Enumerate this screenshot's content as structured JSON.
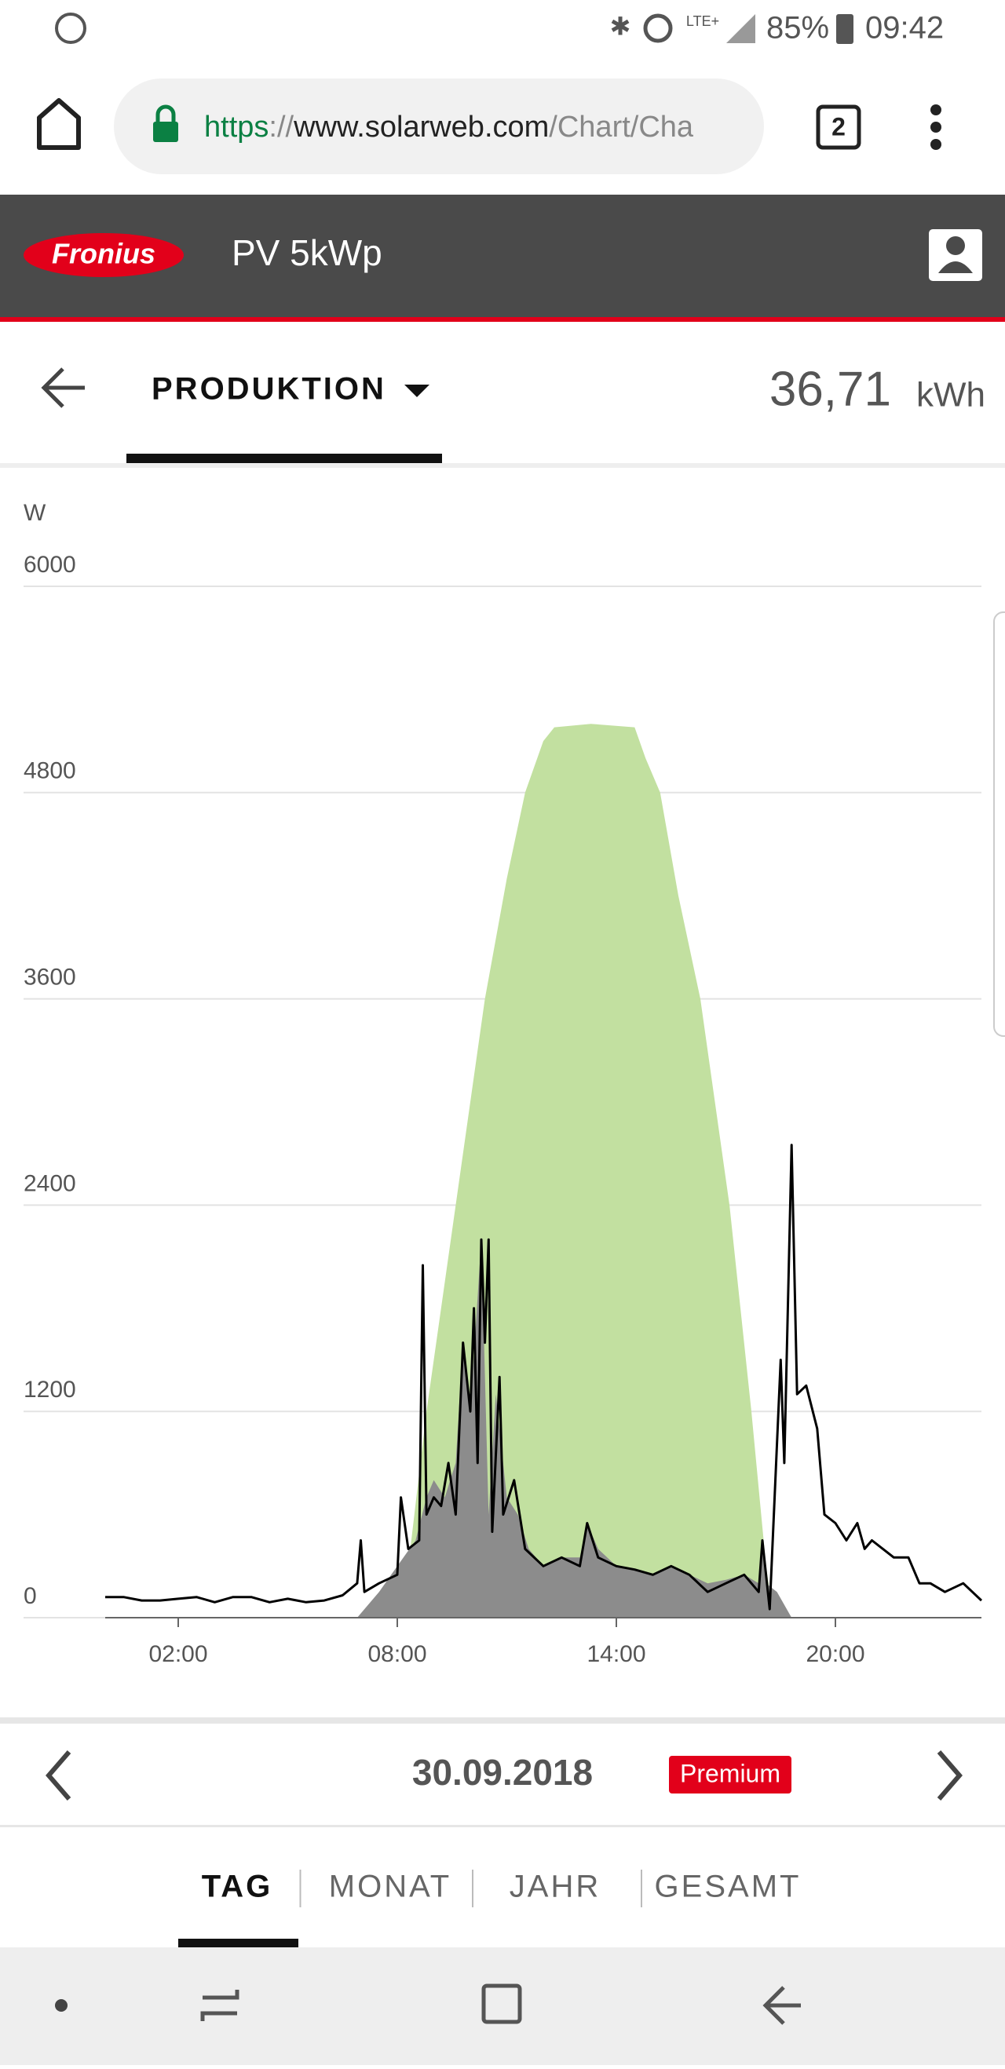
{
  "status_bar": {
    "network": "LTE+",
    "battery": "85%",
    "time": "09:42"
  },
  "browser": {
    "url_scheme": "https",
    "url_separator": "://",
    "url_host": "www.solarweb.com",
    "url_path": "/Chart/Cha",
    "tab_count": "2"
  },
  "app_header": {
    "logo": "Fronius",
    "site": "PV 5kWp"
  },
  "view_bar": {
    "view": "PRODUKTION",
    "total": "36,71",
    "unit": "kWh"
  },
  "chart_data": {
    "type": "area",
    "y_label": "W",
    "xlim": [
      0,
      24
    ],
    "xticks": [
      {
        "value": 2,
        "label": "02:00"
      },
      {
        "value": 8,
        "label": "08:00"
      },
      {
        "value": 14,
        "label": "14:00"
      },
      {
        "value": 20,
        "label": "20:00"
      }
    ],
    "ylim": [
      0,
      6000
    ],
    "yticks": [
      0,
      1200,
      2400,
      3600,
      4800,
      6000
    ],
    "grid": true,
    "series": [
      {
        "color": "#c2e0a0",
        "fill": true,
        "x": [
          7.5,
          8.3,
          8.8,
          9.6,
          10.4,
          11.0,
          11.5,
          12.0,
          12.3,
          13.3,
          14.5,
          14.8,
          15.2,
          15.7,
          16.3,
          17.1,
          17.7,
          18.1,
          18.3
        ],
        "values": [
          0,
          300,
          1200,
          2400,
          3600,
          4300,
          4800,
          5100,
          5180,
          5200,
          5180,
          5000,
          4800,
          4200,
          3600,
          2400,
          1200,
          300,
          0
        ]
      },
      {
        "color": "#8c8c8c",
        "fill": true,
        "x": [
          6.9,
          7.5,
          8.0,
          8.5,
          8.8,
          9.0,
          9.3,
          9.6,
          9.8,
          10.0,
          10.3,
          10.5,
          10.7,
          11.0,
          11.3,
          11.6,
          12.0,
          12.5,
          13.0,
          13.2,
          13.5,
          14.0,
          14.5,
          15.0,
          15.5,
          16.0,
          16.5,
          17.0,
          17.5,
          17.9,
          18.0,
          18.1,
          18.4,
          18.8
        ],
        "values": [
          0,
          150,
          300,
          450,
          700,
          800,
          700,
          900,
          1600,
          1200,
          2200,
          600,
          1300,
          700,
          600,
          400,
          300,
          350,
          350,
          550,
          400,
          300,
          280,
          250,
          300,
          250,
          200,
          220,
          250,
          200,
          450,
          200,
          150,
          0
        ]
      },
      {
        "color": "#000000",
        "fill": false,
        "x": [
          0.0,
          0.5,
          1.0,
          1.5,
          2.0,
          2.5,
          3.0,
          3.5,
          4.0,
          4.5,
          5.0,
          5.5,
          6.0,
          6.5,
          6.9,
          7.0,
          7.1,
          7.5,
          8.0,
          8.1,
          8.3,
          8.6,
          8.7,
          8.8,
          9.0,
          9.2,
          9.4,
          9.6,
          9.8,
          10.0,
          10.1,
          10.2,
          10.3,
          10.4,
          10.5,
          10.6,
          10.8,
          10.9,
          11.2,
          11.5,
          12.0,
          12.5,
          13.0,
          13.2,
          13.5,
          14.0,
          14.5,
          15.0,
          15.5,
          16.0,
          16.5,
          17.0,
          17.5,
          17.9,
          18.0,
          18.2,
          18.5,
          18.6,
          18.8,
          18.95,
          19.2,
          19.5,
          19.7,
          20.0,
          20.3,
          20.6,
          20.8,
          21.0,
          21.3,
          21.6,
          22.0,
          22.3,
          22.6,
          23.0,
          23.5,
          24.0
        ],
        "values": [
          120,
          120,
          100,
          100,
          110,
          120,
          90,
          120,
          120,
          90,
          110,
          90,
          100,
          130,
          200,
          450,
          150,
          200,
          250,
          700,
          400,
          450,
          2050,
          600,
          700,
          650,
          900,
          600,
          1600,
          1200,
          1800,
          900,
          2200,
          1600,
          2200,
          500,
          1400,
          600,
          800,
          400,
          300,
          350,
          300,
          550,
          350,
          300,
          280,
          250,
          300,
          250,
          150,
          200,
          250,
          150,
          450,
          50,
          1500,
          900,
          2750,
          1300,
          1350,
          1100,
          600,
          550,
          450,
          550,
          400,
          450,
          400,
          350,
          350,
          200,
          200,
          150,
          200,
          100
        ]
      }
    ]
  },
  "date_bar": {
    "date": "30.09.2018",
    "badge": "Premium"
  },
  "period_tabs": [
    "TAG",
    "MONAT",
    "JAHR",
    "GESAMT"
  ]
}
